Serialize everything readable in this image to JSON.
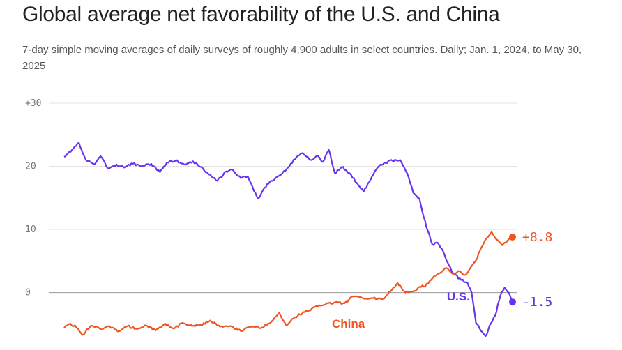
{
  "header": {
    "title": "Global average net favorability of the U.S. and China",
    "subtitle": "7-day simple moving averages of daily surveys of roughly 4,900 adults in select countries. Daily; Jan. 1, 2024, to May 30, 2025"
  },
  "chart_data": {
    "type": "line",
    "x_range": [
      "2024-01-01",
      "2025-05-30"
    ],
    "ylim": [
      -7,
      30
    ],
    "yticks": [
      {
        "value": 30,
        "label": "+30"
      },
      {
        "value": 20,
        "label": "20"
      },
      {
        "value": 10,
        "label": "10"
      },
      {
        "value": 0,
        "label": "0"
      }
    ],
    "grid": true,
    "colors": {
      "us": "#6633ee",
      "china": "#ee5522"
    },
    "series": [
      {
        "name": "U.S.",
        "end_label": "-1.5",
        "color": "#6633ee",
        "points": [
          [
            "2024-01-01",
            21.5
          ],
          [
            "2024-01-10",
            22.6
          ],
          [
            "2024-01-18",
            23.7
          ],
          [
            "2024-01-26",
            21.0
          ],
          [
            "2024-02-05",
            20.3
          ],
          [
            "2024-02-12",
            21.6
          ],
          [
            "2024-02-20",
            19.7
          ],
          [
            "2024-03-01",
            20.3
          ],
          [
            "2024-03-10",
            19.8
          ],
          [
            "2024-03-20",
            20.4
          ],
          [
            "2024-04-01",
            20.1
          ],
          [
            "2024-04-10",
            20.4
          ],
          [
            "2024-04-20",
            19.1
          ],
          [
            "2024-04-28",
            20.6
          ],
          [
            "2024-05-08",
            20.9
          ],
          [
            "2024-05-18",
            20.3
          ],
          [
            "2024-05-28",
            20.8
          ],
          [
            "2024-06-06",
            19.9
          ],
          [
            "2024-06-15",
            18.7
          ],
          [
            "2024-06-25",
            17.7
          ],
          [
            "2024-07-05",
            19.2
          ],
          [
            "2024-07-13",
            19.4
          ],
          [
            "2024-07-22",
            18.1
          ],
          [
            "2024-07-30",
            18.4
          ],
          [
            "2024-08-06",
            16.1
          ],
          [
            "2024-08-11",
            14.9
          ],
          [
            "2024-08-18",
            16.6
          ],
          [
            "2024-08-26",
            17.7
          ],
          [
            "2024-09-05",
            18.6
          ],
          [
            "2024-09-14",
            19.8
          ],
          [
            "2024-09-24",
            21.5
          ],
          [
            "2024-10-01",
            22.1
          ],
          [
            "2024-10-10",
            21.0
          ],
          [
            "2024-10-18",
            21.7
          ],
          [
            "2024-10-24",
            20.7
          ],
          [
            "2024-10-31",
            22.6
          ],
          [
            "2024-11-07",
            18.9
          ],
          [
            "2024-11-15",
            19.9
          ],
          [
            "2024-11-24",
            18.9
          ],
          [
            "2024-12-02",
            17.4
          ],
          [
            "2024-12-10",
            16.0
          ],
          [
            "2024-12-18",
            17.9
          ],
          [
            "2024-12-26",
            19.8
          ],
          [
            "2025-01-03",
            20.6
          ],
          [
            "2025-01-12",
            20.9
          ],
          [
            "2025-01-21",
            21.0
          ],
          [
            "2025-01-29",
            18.9
          ],
          [
            "2025-02-05",
            15.8
          ],
          [
            "2025-02-12",
            14.9
          ],
          [
            "2025-02-20",
            10.4
          ],
          [
            "2025-02-27",
            7.6
          ],
          [
            "2025-03-05",
            7.9
          ],
          [
            "2025-03-12",
            6.3
          ],
          [
            "2025-03-18",
            4.3
          ],
          [
            "2025-03-24",
            2.9
          ],
          [
            "2025-04-01",
            2.0
          ],
          [
            "2025-04-08",
            1.6
          ],
          [
            "2025-04-13",
            0.0
          ],
          [
            "2025-04-18",
            -4.8
          ],
          [
            "2025-04-24",
            -6.1
          ],
          [
            "2025-04-29",
            -6.9
          ],
          [
            "2025-05-05",
            -4.9
          ],
          [
            "2025-05-10",
            -3.7
          ],
          [
            "2025-05-16",
            -0.5
          ],
          [
            "2025-05-21",
            0.8
          ],
          [
            "2025-05-26",
            -0.1
          ],
          [
            "2025-05-30",
            -1.5
          ]
        ]
      },
      {
        "name": "China",
        "end_label": "+8.8",
        "color": "#ee5522",
        "points": [
          [
            "2024-01-01",
            -5.6
          ],
          [
            "2024-01-08",
            -4.9
          ],
          [
            "2024-01-15",
            -5.5
          ],
          [
            "2024-01-22",
            -6.7
          ],
          [
            "2024-02-01",
            -5.2
          ],
          [
            "2024-02-12",
            -5.8
          ],
          [
            "2024-02-22",
            -5.3
          ],
          [
            "2024-03-04",
            -6.1
          ],
          [
            "2024-03-14",
            -5.3
          ],
          [
            "2024-03-25",
            -5.8
          ],
          [
            "2024-04-04",
            -5.2
          ],
          [
            "2024-04-15",
            -6.0
          ],
          [
            "2024-04-26",
            -4.9
          ],
          [
            "2024-05-06",
            -5.7
          ],
          [
            "2024-05-16",
            -4.8
          ],
          [
            "2024-05-27",
            -5.3
          ],
          [
            "2024-06-06",
            -5.1
          ],
          [
            "2024-06-17",
            -4.4
          ],
          [
            "2024-06-28",
            -5.4
          ],
          [
            "2024-07-10",
            -5.3
          ],
          [
            "2024-07-22",
            -6.1
          ],
          [
            "2024-08-02",
            -5.4
          ],
          [
            "2024-08-14",
            -5.6
          ],
          [
            "2024-08-25",
            -4.8
          ],
          [
            "2024-09-04",
            -3.2
          ],
          [
            "2024-09-12",
            -5.2
          ],
          [
            "2024-09-22",
            -3.9
          ],
          [
            "2024-10-03",
            -3.1
          ],
          [
            "2024-10-15",
            -2.3
          ],
          [
            "2024-10-27",
            -1.9
          ],
          [
            "2024-11-06",
            -1.6
          ],
          [
            "2024-11-18",
            -1.7
          ],
          [
            "2024-11-28",
            -0.6
          ],
          [
            "2024-12-08",
            -0.8
          ],
          [
            "2024-12-18",
            -0.9
          ],
          [
            "2025-01-01",
            -1.0
          ],
          [
            "2025-01-10",
            0.2
          ],
          [
            "2025-01-18",
            1.5
          ],
          [
            "2025-01-27",
            0.0
          ],
          [
            "2025-02-06",
            0.3
          ],
          [
            "2025-02-14",
            0.9
          ],
          [
            "2025-02-22",
            1.4
          ],
          [
            "2025-03-01",
            2.6
          ],
          [
            "2025-03-08",
            3.1
          ],
          [
            "2025-03-15",
            3.9
          ],
          [
            "2025-03-22",
            3.0
          ],
          [
            "2025-03-30",
            3.4
          ],
          [
            "2025-04-06",
            2.8
          ],
          [
            "2025-04-12",
            4.0
          ],
          [
            "2025-04-18",
            5.1
          ],
          [
            "2025-04-24",
            7.1
          ],
          [
            "2025-04-30",
            8.6
          ],
          [
            "2025-05-06",
            9.6
          ],
          [
            "2025-05-12",
            8.4
          ],
          [
            "2025-05-18",
            7.5
          ],
          [
            "2025-05-24",
            8.2
          ],
          [
            "2025-05-30",
            8.8
          ]
        ]
      }
    ]
  }
}
